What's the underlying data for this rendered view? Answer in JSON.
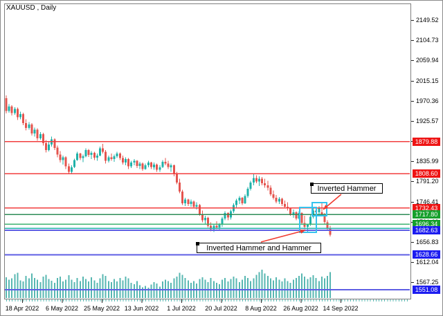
{
  "window": {
    "title": "XAUUSD , Daily"
  },
  "axes": {
    "y_ticks": [
      "2149.52",
      "2104.73",
      "2059.94",
      "2015.15",
      "1970.36",
      "1925.57",
      "1880.78",
      "1835.99",
      "1791.20",
      "1746.41",
      "1701.62",
      "1656.83",
      "1612.04",
      "1567.25"
    ],
    "x_dates": [
      "18 Apr 2022",
      "6 May 2022",
      "25 May 2022",
      "13 Jun 2022",
      "1 Jul 2022",
      "20 Jul 2022",
      "8 Aug 2022",
      "26 Aug 2022",
      "14 Sep 2022"
    ]
  },
  "annotations": [
    {
      "text": "Inverted Hammer"
    },
    {
      "text": "Inverted Hammer and Hammer"
    }
  ],
  "chart_data": {
    "type": "candlestick",
    "symbol": "XAUUSD",
    "timeframe": "Daily",
    "title": "XAUUSD , Daily",
    "bull_color": "#1fb2a9",
    "bear_color": "#e4544e",
    "volume_color": "#57b7b1",
    "grid": false,
    "y_axis_range": [
      1531,
      2186
    ],
    "levels": [
      {
        "label": "1879.88",
        "price": 1879.88,
        "line_color": "#f23d3d",
        "label_bg": "#ee1414",
        "kind": "resistance"
      },
      {
        "label": "1808.60",
        "price": 1808.6,
        "line_color": "#f23d3d",
        "label_bg": "#ee1414",
        "kind": "resistance"
      },
      {
        "label": "1732.43",
        "price": 1732.43,
        "line_color": "#f23d3d",
        "label_bg": "#ee1414",
        "kind": "resistance"
      },
      {
        "label": "1717.80",
        "price": 1717.8,
        "line_color": "#2e8b57",
        "label_bg": "#16a02c",
        "kind": "support"
      },
      {
        "label": "1696.34",
        "price": 1696.34,
        "line_color": "#3cb371",
        "label_bg": "#16a02c",
        "kind": "support"
      },
      {
        "label": null,
        "price": 1687.2,
        "line_color": "#20b2aa",
        "label_bg": null,
        "kind": "support"
      },
      {
        "label": "1682.63",
        "price": 1682.63,
        "line_color": "#5e5ee4",
        "label_bg": "#1c1cf0",
        "kind": "support"
      },
      {
        "label": "1628.66",
        "price": 1628.66,
        "line_color": "#5e5ee4",
        "label_bg": "#1c1cf0",
        "kind": "support"
      },
      {
        "label": "1551.08",
        "price": 1551.08,
        "line_color": "#5e5ee4",
        "label_bg": "#1c1cf0",
        "kind": "support"
      }
    ],
    "ohlc": [
      [
        1976,
        1982,
        1942,
        1948
      ],
      [
        1948,
        1963,
        1944,
        1958
      ],
      [
        1958,
        1961,
        1938,
        1943
      ],
      [
        1943,
        1956,
        1939,
        1952
      ],
      [
        1952,
        1955,
        1928,
        1934
      ],
      [
        1934,
        1946,
        1929,
        1941
      ],
      [
        1941,
        1944,
        1916,
        1921
      ],
      [
        1921,
        1929,
        1905,
        1910
      ],
      [
        1910,
        1923,
        1906,
        1918
      ],
      [
        1918,
        1921,
        1893,
        1898
      ],
      [
        1898,
        1911,
        1891,
        1906
      ],
      [
        1906,
        1909,
        1882,
        1887
      ],
      [
        1887,
        1901,
        1884,
        1896
      ],
      [
        1896,
        1899,
        1871,
        1876
      ],
      [
        1876,
        1883,
        1856,
        1861
      ],
      [
        1861,
        1879,
        1858,
        1873
      ],
      [
        1873,
        1891,
        1869,
        1885
      ],
      [
        1885,
        1887,
        1861,
        1866
      ],
      [
        1866,
        1871,
        1845,
        1851
      ],
      [
        1851,
        1859,
        1833,
        1839
      ],
      [
        1839,
        1849,
        1829,
        1845
      ],
      [
        1845,
        1847,
        1819,
        1825
      ],
      [
        1825,
        1831,
        1807,
        1813
      ],
      [
        1813,
        1827,
        1809,
        1823
      ],
      [
        1823,
        1842,
        1821,
        1839
      ],
      [
        1839,
        1857,
        1837,
        1853
      ],
      [
        1853,
        1855,
        1839,
        1843
      ],
      [
        1843,
        1851,
        1834,
        1847
      ],
      [
        1847,
        1865,
        1845,
        1861
      ],
      [
        1861,
        1863,
        1846,
        1850
      ],
      [
        1850,
        1859,
        1841,
        1855
      ],
      [
        1855,
        1857,
        1839,
        1844
      ],
      [
        1844,
        1853,
        1837,
        1849
      ],
      [
        1849,
        1869,
        1847,
        1865
      ],
      [
        1865,
        1875,
        1853,
        1857
      ],
      [
        1857,
        1861,
        1831,
        1837
      ],
      [
        1837,
        1849,
        1833,
        1845
      ],
      [
        1845,
        1853,
        1837,
        1841
      ],
      [
        1841,
        1851,
        1835,
        1847
      ],
      [
        1847,
        1857,
        1843,
        1853
      ],
      [
        1853,
        1856,
        1839,
        1843
      ],
      [
        1843,
        1849,
        1829,
        1833
      ],
      [
        1833,
        1845,
        1827,
        1841
      ],
      [
        1841,
        1843,
        1819,
        1825
      ],
      [
        1825,
        1837,
        1821,
        1833
      ],
      [
        1833,
        1841,
        1827,
        1837
      ],
      [
        1837,
        1839,
        1821,
        1826
      ],
      [
        1826,
        1835,
        1819,
        1831
      ],
      [
        1831,
        1833,
        1815,
        1819
      ],
      [
        1819,
        1831,
        1817,
        1827
      ],
      [
        1827,
        1837,
        1823,
        1833
      ],
      [
        1833,
        1835,
        1819,
        1823
      ],
      [
        1823,
        1833,
        1817,
        1829
      ],
      [
        1829,
        1831,
        1813,
        1817
      ],
      [
        1817,
        1827,
        1813,
        1823
      ],
      [
        1823,
        1839,
        1821,
        1835
      ],
      [
        1835,
        1843,
        1827,
        1831
      ],
      [
        1831,
        1837,
        1819,
        1823
      ],
      [
        1823,
        1831,
        1813,
        1827
      ],
      [
        1827,
        1829,
        1803,
        1807
      ],
      [
        1807,
        1813,
        1785,
        1789
      ],
      [
        1789,
        1797,
        1765,
        1769
      ],
      [
        1769,
        1773,
        1739,
        1743
      ],
      [
        1743,
        1755,
        1737,
        1751
      ],
      [
        1751,
        1753,
        1737,
        1741
      ],
      [
        1741,
        1751,
        1735,
        1747
      ],
      [
        1747,
        1749,
        1731,
        1735
      ],
      [
        1735,
        1745,
        1729,
        1739
      ],
      [
        1739,
        1741,
        1715,
        1719
      ],
      [
        1719,
        1727,
        1701,
        1705
      ],
      [
        1705,
        1715,
        1697,
        1711
      ],
      [
        1711,
        1713,
        1689,
        1693
      ],
      [
        1693,
        1701,
        1681,
        1685
      ],
      [
        1685,
        1697,
        1679,
        1693
      ],
      [
        1693,
        1703,
        1685,
        1689
      ],
      [
        1689,
        1699,
        1682,
        1695
      ],
      [
        1695,
        1713,
        1691,
        1709
      ],
      [
        1709,
        1725,
        1705,
        1721
      ],
      [
        1721,
        1723,
        1705,
        1711
      ],
      [
        1711,
        1729,
        1707,
        1725
      ],
      [
        1725,
        1743,
        1721,
        1739
      ],
      [
        1739,
        1753,
        1731,
        1749
      ],
      [
        1749,
        1759,
        1741,
        1755
      ],
      [
        1755,
        1757,
        1739,
        1743
      ],
      [
        1743,
        1763,
        1741,
        1759
      ],
      [
        1759,
        1779,
        1755,
        1775
      ],
      [
        1775,
        1793,
        1771,
        1789
      ],
      [
        1789,
        1808,
        1783,
        1799
      ],
      [
        1799,
        1805,
        1787,
        1791
      ],
      [
        1791,
        1803,
        1781,
        1797
      ],
      [
        1797,
        1801,
        1783,
        1787
      ],
      [
        1787,
        1797,
        1777,
        1783
      ],
      [
        1783,
        1793,
        1771,
        1777
      ],
      [
        1777,
        1783,
        1759,
        1763
      ],
      [
        1763,
        1771,
        1751,
        1755
      ],
      [
        1755,
        1761,
        1743,
        1747
      ],
      [
        1747,
        1757,
        1741,
        1753
      ],
      [
        1753,
        1755,
        1737,
        1741
      ],
      [
        1741,
        1749,
        1731,
        1735
      ],
      [
        1735,
        1745,
        1727,
        1731
      ],
      [
        1731,
        1733,
        1715,
        1719
      ],
      [
        1719,
        1729,
        1711,
        1723
      ],
      [
        1723,
        1725,
        1705,
        1709
      ],
      [
        1709,
        1725,
        1707,
        1721
      ],
      [
        1721,
        1723,
        1695,
        1699
      ],
      [
        1699,
        1715,
        1685,
        1691
      ],
      [
        1691,
        1697,
        1680,
        1695
      ],
      [
        1695,
        1717,
        1693,
        1713
      ],
      [
        1713,
        1731,
        1709,
        1727
      ],
      [
        1727,
        1733,
        1717,
        1723
      ],
      [
        1723,
        1737,
        1719,
        1733
      ],
      [
        1723,
        1744,
        1717,
        1719
      ],
      [
        1719,
        1721,
        1697,
        1701
      ],
      [
        1701,
        1705,
        1683,
        1687
      ],
      [
        1687,
        1693,
        1669,
        1673
      ]
    ],
    "volume": [
      58,
      50,
      55,
      68,
      72,
      48,
      44,
      62,
      54,
      70,
      56,
      50,
      42,
      60,
      66,
      52,
      47,
      40,
      56,
      60,
      44,
      50,
      64,
      50,
      42,
      56,
      46,
      60,
      52,
      44,
      58,
      48,
      40,
      54,
      68,
      62,
      46,
      42,
      52,
      44,
      56,
      48,
      60,
      54,
      40,
      36,
      46,
      32,
      26,
      30,
      24,
      34,
      42,
      38,
      28,
      44,
      50,
      46,
      40,
      54,
      60,
      72,
      66,
      56,
      48,
      40,
      46,
      38,
      52,
      58,
      50,
      42,
      56,
      46,
      40,
      36,
      50,
      56,
      44,
      52,
      60,
      54,
      42,
      50,
      62,
      56,
      46,
      54,
      66,
      74,
      82,
      70,
      62,
      54,
      48,
      58,
      50,
      44,
      54,
      46,
      40,
      50,
      56,
      62,
      70,
      60,
      52,
      58,
      64,
      56,
      46,
      60,
      54,
      62,
      74
    ],
    "pattern_highlight_color": "#35c3ee",
    "arrow_color": "#f03b30"
  }
}
